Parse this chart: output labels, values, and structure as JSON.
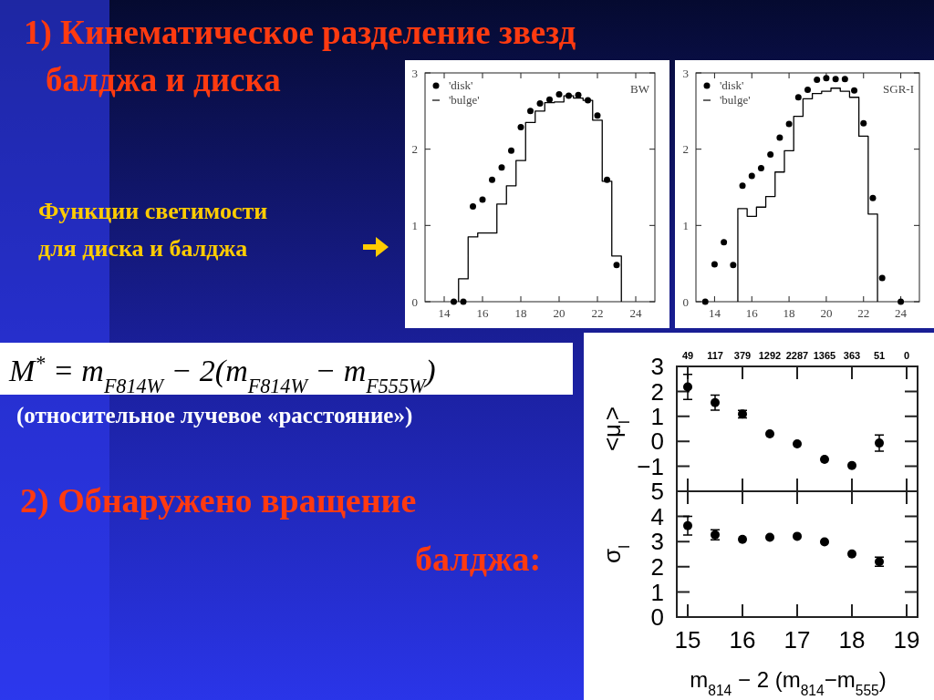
{
  "chart_data": [
    {
      "type": "other",
      "title": "1) Кинематическое разделение звезд балджа и диска",
      "annotations": [
        "Функции светимости для диска и балджа",
        "M$^{*}$ = m$_{F814W}$ − 2(m$_{F814W}$ − m$_{F555W}$)",
        "(относительное лучевое «расстояние»)",
        "2) Обнаружено вращение балджа:"
      ]
    },
    {
      "type": "scatter",
      "xlim": [
        13,
        25
      ],
      "xticks": [
        14,
        16,
        18,
        20,
        22,
        24
      ],
      "ylim": [
        0,
        3
      ],
      "yticks": [
        0,
        1,
        2,
        3
      ],
      "legend": "top left",
      "annotations": [
        "BW"
      ],
      "series": [
        {
          "name": "'disk'",
          "type": "scatter",
          "marker": "circle",
          "color": "#000000",
          "x": [
            14.5,
            15,
            15.5,
            16,
            16.5,
            17,
            17.5,
            18,
            18.5,
            19,
            19.5,
            20,
            20.5,
            21,
            21.5,
            22,
            22.5,
            23
          ],
          "values": [
            0,
            0,
            1.25,
            1.34,
            1.6,
            1.76,
            1.98,
            2.29,
            2.5,
            2.6,
            2.65,
            2.72,
            2.7,
            2.71,
            2.64,
            2.44,
            1.6,
            0.48
          ]
        },
        {
          "name": "'bulge'",
          "type": "step",
          "color": "#000000",
          "x": [
            14.75,
            14.75,
            15.25,
            15.75,
            16.75,
            17.25,
            17.75,
            18.25,
            18.75,
            19.25,
            19.75,
            20.25,
            20.75,
            21.25,
            21.75,
            22.25,
            22.75,
            23.25
          ],
          "values": [
            0,
            0.3,
            0.85,
            0.9,
            1.28,
            1.52,
            1.85,
            2.35,
            2.5,
            2.61,
            2.62,
            2.7,
            2.67,
            2.64,
            2.38,
            1.58,
            0.6,
            0
          ]
        }
      ]
    },
    {
      "type": "scatter",
      "xlim": [
        13,
        25
      ],
      "xticks": [
        14,
        16,
        18,
        20,
        22,
        24
      ],
      "ylim": [
        0,
        3
      ],
      "yticks": [
        0,
        1,
        2,
        3
      ],
      "legend": "top left",
      "annotations": [
        "SGR-I"
      ],
      "series": [
        {
          "name": "'disk'",
          "type": "scatter",
          "marker": "circle",
          "color": "#000000",
          "x": [
            13.5,
            14,
            14.5,
            15,
            15.5,
            16,
            16.5,
            17,
            17.5,
            18,
            18.5,
            19,
            19.5,
            20,
            20.5,
            21,
            21.5,
            22,
            22.5,
            23,
            24
          ],
          "values": [
            0,
            0.49,
            0.78,
            0.48,
            1.52,
            1.65,
            1.75,
            1.93,
            2.15,
            2.33,
            2.68,
            2.78,
            2.91,
            2.93,
            2.92,
            2.92,
            2.77,
            2.34,
            1.36,
            0.31,
            0
          ]
        },
        {
          "name": "'bulge'",
          "type": "step",
          "color": "#000000",
          "x": [
            15.25,
            15.25,
            15.75,
            16.25,
            16.75,
            17.25,
            17.75,
            18.25,
            18.75,
            19.25,
            19.75,
            20.25,
            20.75,
            21.25,
            21.75,
            22.25,
            22.75
          ],
          "values": [
            0,
            1.22,
            1.12,
            1.24,
            1.38,
            1.7,
            1.98,
            2.43,
            2.66,
            2.73,
            2.76,
            2.8,
            2.76,
            2.68,
            2.17,
            1.15,
            0
          ]
        }
      ]
    },
    {
      "type": "scatter",
      "x": [
        15,
        15.5,
        16,
        16.5,
        17,
        17.5,
        18,
        18.5
      ],
      "xlim": [
        14.8,
        19.2
      ],
      "xticks": [
        15,
        16,
        17,
        18,
        19
      ],
      "annotations": [
        "49",
        "117",
        "379",
        "1292",
        "2287",
        "1365",
        "363",
        "51",
        "0"
      ],
      "ylim": [
        -2,
        3
      ],
      "yticks": [
        -1,
        0,
        1,
        2,
        3
      ],
      "ylabel": "<μ$_{l}$>",
      "tick_labels": "y",
      "marker": "circle",
      "series": [
        {
          "color": "#000000",
          "values": [
            2.18,
            1.55,
            1.09,
            0.3,
            -0.1,
            -0.72,
            -0.97,
            -0.07
          ],
          "errors": [
            0.5,
            0.3,
            0.15,
            null,
            null,
            null,
            null,
            0.32
          ]
        }
      ]
    },
    {
      "type": "scatter",
      "x": [
        15,
        15.5,
        16,
        16.5,
        17,
        17.5,
        18,
        18.5
      ],
      "xlim": [
        14.8,
        19.2
      ],
      "xticks": [
        15,
        16,
        17,
        18,
        19
      ],
      "ylim": [
        0,
        5
      ],
      "yticks": [
        0,
        1,
        2,
        3,
        4,
        5
      ],
      "xlabel": "m$_{814}$ − 2 (m$_{814}$−m$_{555}$)",
      "ylabel": "σ$_{l}$",
      "marker": "circle",
      "series": [
        {
          "color": "#000000",
          "values": [
            3.63,
            3.27,
            3.09,
            3.17,
            3.21,
            2.99,
            2.51,
            2.2
          ],
          "errors": [
            0.37,
            0.2,
            null,
            null,
            null,
            null,
            null,
            0.18
          ]
        }
      ]
    }
  ]
}
